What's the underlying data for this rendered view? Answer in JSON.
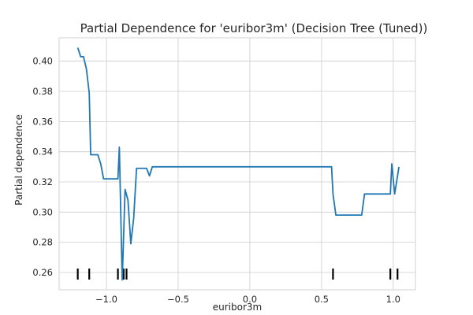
{
  "chart_data": {
    "type": "line",
    "title": "Partial Dependence for 'euribor3m' (Decision Tree (Tuned))",
    "xlabel": "euribor3m",
    "ylabel": "Partial dependence",
    "xlim": [
      -1.33,
      1.155
    ],
    "ylim": [
      0.2485,
      0.4155
    ],
    "xticks": [
      -1.0,
      -0.5,
      0.0,
      0.5,
      1.0
    ],
    "xtick_labels": [
      "−1.0",
      "−0.5",
      "0.0",
      "0.5",
      "1.0"
    ],
    "yticks": [
      0.26,
      0.28,
      0.3,
      0.32,
      0.34,
      0.36,
      0.38,
      0.4
    ],
    "ytick_labels": [
      "0.26",
      "0.28",
      "0.30",
      "0.32",
      "0.34",
      "0.36",
      "0.38",
      "0.40"
    ],
    "grid": true,
    "series": [
      {
        "color": "#1f77b4",
        "x": [
          -1.2,
          -1.18,
          -1.16,
          -1.14,
          -1.12,
          -1.11,
          -1.08,
          -1.06,
          -1.04,
          -1.02,
          -0.98,
          -0.94,
          -0.92,
          -0.91,
          -0.89,
          -0.87,
          -0.85,
          -0.83,
          -0.81,
          -0.79,
          -0.78,
          -0.76,
          -0.74,
          -0.72,
          -0.7,
          -0.68,
          -0.66,
          -0.6,
          -0.4,
          -0.2,
          0.0,
          0.2,
          0.4,
          0.57,
          0.58,
          0.6,
          0.65,
          0.7,
          0.75,
          0.78,
          0.8,
          0.85,
          0.9,
          0.95,
          0.98,
          0.99,
          1.01,
          1.04
        ],
        "y": [
          0.409,
          0.403,
          0.403,
          0.395,
          0.379,
          0.338,
          0.338,
          0.338,
          0.332,
          0.322,
          0.322,
          0.322,
          0.322,
          0.343,
          0.255,
          0.315,
          0.308,
          0.279,
          0.296,
          0.329,
          0.329,
          0.329,
          0.329,
          0.329,
          0.324,
          0.33,
          0.33,
          0.33,
          0.33,
          0.33,
          0.33,
          0.33,
          0.33,
          0.33,
          0.312,
          0.298,
          0.298,
          0.298,
          0.298,
          0.298,
          0.312,
          0.312,
          0.312,
          0.312,
          0.312,
          0.332,
          0.312,
          0.33
        ]
      }
    ],
    "rug_x": [
      -1.2,
      -1.12,
      -0.92,
      -0.88,
      -0.86,
      0.58,
      0.98,
      1.03
    ]
  }
}
